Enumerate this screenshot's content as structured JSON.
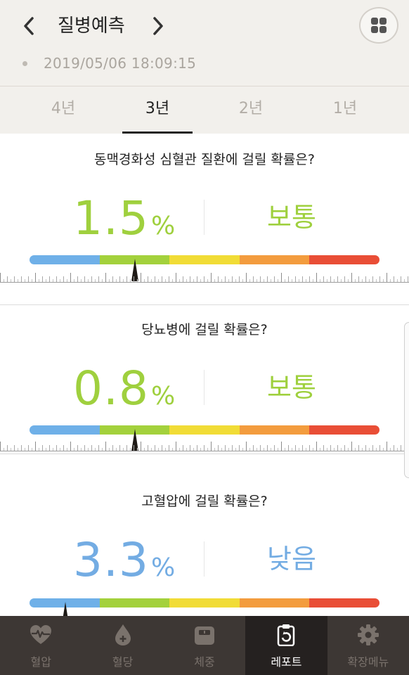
{
  "header": {
    "title": "질병예측",
    "datetime": "2019/05/06   18:09:15"
  },
  "tabs": [
    {
      "label": "4년",
      "active": false
    },
    {
      "label": "3년",
      "active": true
    },
    {
      "label": "2년",
      "active": false
    },
    {
      "label": "1년",
      "active": false
    }
  ],
  "gauge_colors": [
    "#6fb0e8",
    "#a3d13c",
    "#f1dc36",
    "#f39c3e",
    "#e94e36"
  ],
  "cards": [
    {
      "question": "동맥경화성 심혈관 질환에 걸릴 확률은?",
      "value": "1.5",
      "unit": "%",
      "level": "보통",
      "color": "#9fd03e",
      "marker_position": 0.3
    },
    {
      "question": "당뇨병에 걸릴 확률은?",
      "value": "0.8",
      "unit": "%",
      "level": "보통",
      "color": "#9fd03e",
      "marker_position": 0.3
    },
    {
      "question": "고혈압에 걸릴 확률은?",
      "value": "3.3",
      "unit": "%",
      "level": "낮음",
      "color": "#73ace3",
      "marker_position": 0.1
    }
  ],
  "bottom_nav": [
    {
      "label": "혈압",
      "icon": "heart-pulse-icon",
      "active": false
    },
    {
      "label": "혈당",
      "icon": "blood-drop-icon",
      "active": false
    },
    {
      "label": "체중",
      "icon": "scale-icon",
      "active": false
    },
    {
      "label": "레포트",
      "icon": "report-clipboard-icon",
      "active": true
    },
    {
      "label": "확장메뉴",
      "icon": "gear-icon",
      "active": false
    }
  ]
}
